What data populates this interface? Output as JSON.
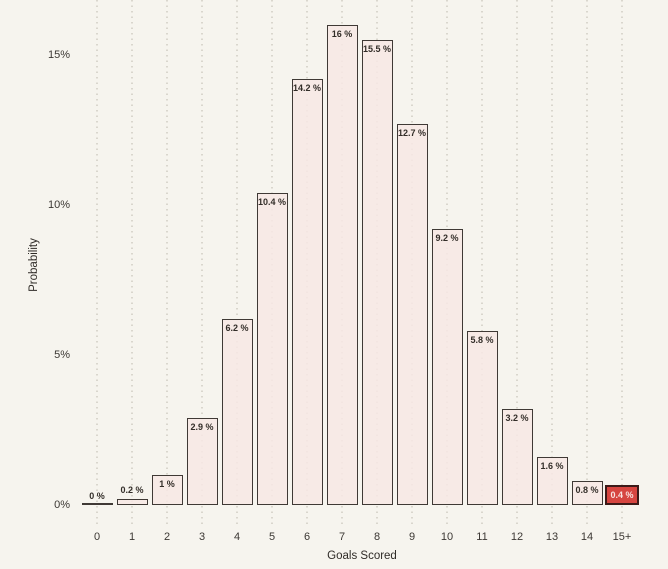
{
  "chart_data": {
    "type": "bar",
    "title": "",
    "xlabel": "Goals Scored",
    "ylabel": "Probability",
    "categories": [
      "0",
      "1",
      "2",
      "3",
      "4",
      "5",
      "6",
      "7",
      "8",
      "9",
      "10",
      "11",
      "12",
      "13",
      "14",
      "15+"
    ],
    "values": [
      0,
      0.2,
      1,
      2.9,
      6.2,
      10.4,
      14.2,
      16,
      15.5,
      12.7,
      9.2,
      5.8,
      3.2,
      1.6,
      0.8,
      0.4
    ],
    "bar_labels": [
      "0 %",
      "0.2 %",
      "1 %",
      "2.9 %",
      "6.2 %",
      "10.4 %",
      "14.2 %",
      "16 %",
      "15.5 %",
      "12.7 %",
      "9.2 %",
      "5.8 %",
      "3.2 %",
      "1.6 %",
      "0.8 %",
      "0.4 %"
    ],
    "y_ticks": {
      "values": [
        0,
        5,
        10,
        15
      ],
      "labels": [
        "0%",
        "5%",
        "10%",
        "15%"
      ]
    },
    "ylim": [
      0,
      16.7
    ],
    "grid": {
      "orientation": "vertical",
      "style": "dotted"
    },
    "legend": null,
    "highlight": {
      "index": 15,
      "label": "0.4 %"
    },
    "colors": {
      "background": "#f6f4ee",
      "bar_fill": "#f7e7e4",
      "bar_border": "#3f3935",
      "label_text": "#322d28",
      "axis_text": "#3b3733",
      "gridline": "#d9d6cd",
      "highlight_fill": "#d64540",
      "highlight_border": "#3c1a18",
      "highlight_text": "#f8e3e0"
    }
  }
}
